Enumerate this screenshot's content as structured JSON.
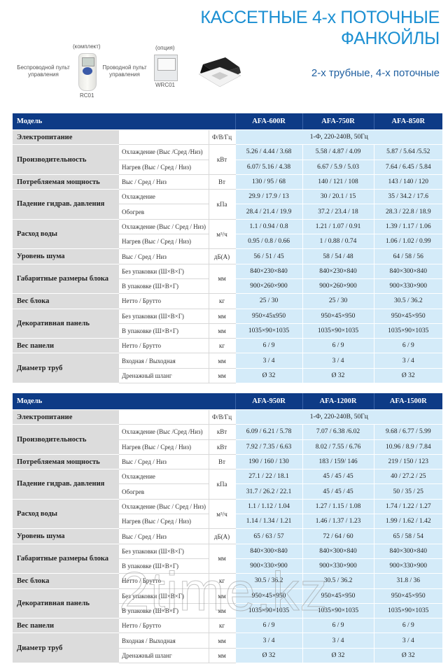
{
  "header": {
    "title_line1": "КАССЕТНЫЕ 4-х ПОТОЧНЫЕ",
    "title_line2": "ФАНКОЙЛЫ",
    "subtitle": "2-х трубные, 4-х поточные",
    "remote_wireless": {
      "note": "(комплект)",
      "label": "Беспроводной пульт управления",
      "model": "RC01"
    },
    "remote_wired": {
      "note": "(опция)",
      "label": "Проводной пульт управления",
      "model": "WRC01"
    }
  },
  "colors": {
    "header_bg": "#0e3b86",
    "title": "#1b8fd2",
    "value_bg": "#d4ebf9",
    "param_bg": "#dcdcdc"
  },
  "watermark": "2time.kz",
  "tables": [
    {
      "model_label": "Модель",
      "models": [
        "AFA-600R",
        "AFA-750R",
        "AFA-850R"
      ],
      "rows": [
        {
          "param": "Электропитание",
          "subs": [
            {
              "label": "",
              "unit": "Ф/В/Гц",
              "merged": "1-Ф, 220-240В, 50Гц"
            }
          ]
        },
        {
          "param": "Производительность",
          "unit": "кВт",
          "subs": [
            {
              "label": "Охлаждение (Выс /Сред /Низ)",
              "values": [
                "5.26 / 4.44 / 3.68",
                "5.58 / 4.87 / 4.09",
                "5.87 / 5.64 /5.52"
              ]
            },
            {
              "label": "Нагрев (Выс / Сред / Низ)",
              "values": [
                "6.07/ 5.16 / 4.38",
                "6.67 / 5.9 / 5.03",
                "7.64 / 6.45 / 5.84"
              ]
            }
          ]
        },
        {
          "param": "Потребляемая мощность",
          "subs": [
            {
              "label": "Выс / Сред / Низ",
              "unit": "Вт",
              "values": [
                "130 / 95 / 68",
                "140 / 121 / 108",
                "143 / 140 / 120"
              ]
            }
          ]
        },
        {
          "param": "Падение гидрав. давления",
          "unit": "кПа",
          "subs": [
            {
              "label": "Охлаждение",
              "values": [
                "29.9 / 17.9 / 13",
                "30 / 20.1 / 15",
                "35 / 34.2 / 17.6"
              ]
            },
            {
              "label": "Обогрев",
              "values": [
                "28.4 / 21.4 / 19.9",
                "37.2 / 23.4 / 18",
                "28.3 / 22.8 / 18.9"
              ]
            }
          ]
        },
        {
          "param": "Расход воды",
          "unit": "м³/ч",
          "subs": [
            {
              "label": "Охлаждение (Выс / Сред / Низ)",
              "values": [
                "1.1 / 0.94 / 0.8",
                "1.21 / 1.07 / 0.91",
                "1.39 / 1.17 / 1.06"
              ]
            },
            {
              "label": "Нагрев (Выс / Сред / Низ)",
              "values": [
                "0.95 / 0.8 / 0.66",
                "1 / 0.88 / 0.74",
                "1.06 / 1.02 / 0.99"
              ]
            }
          ]
        },
        {
          "param": "Уровень шума",
          "subs": [
            {
              "label": "Выс / Сред / Низ",
              "unit": "дБ(А)",
              "values": [
                "56 / 51 / 45",
                "58 / 54 / 48",
                "64 / 58 / 56"
              ]
            }
          ]
        },
        {
          "param": "Габаритные размеры блока",
          "unit": "мм",
          "subs": [
            {
              "label": "Без упаковки (Ш×В×Г)",
              "values": [
                "840×230×840",
                "840×230×840",
                "840×300×840"
              ]
            },
            {
              "label": "В упаковке (Ш×В×Г)",
              "values": [
                "900×260×900",
                "900×260×900",
                "900×330×900"
              ]
            }
          ]
        },
        {
          "param": "Вес блока",
          "subs": [
            {
              "label": "Нетто / Брутто",
              "unit": "кг",
              "values": [
                "25 / 30",
                "25 / 30",
                "30.5 / 36.2"
              ]
            }
          ]
        },
        {
          "param": "Декоративная панель",
          "subs": [
            {
              "label": "Без упаковки (Ш×В×Г)",
              "unit": "мм",
              "values": [
                "950×45x950",
                "950×45×950",
                "950×45×950"
              ]
            },
            {
              "label": "В упаковке (Ш×В×Г)",
              "unit": "мм",
              "values": [
                "1035×90×1035",
                "1035×90×1035",
                "1035×90×1035"
              ]
            }
          ]
        },
        {
          "param": "Вес панели",
          "subs": [
            {
              "label": "Нетто / Брутто",
              "unit": "кг",
              "values": [
                "6 / 9",
                "6 / 9",
                "6 / 9"
              ]
            }
          ]
        },
        {
          "param": "Диаметр труб",
          "subs": [
            {
              "label": "Входная / Выходная",
              "unit": "мм",
              "values": [
                "3 / 4",
                "3 / 4",
                "3  / 4"
              ]
            },
            {
              "label": "Дренажный шланг",
              "unit": "мм",
              "values": [
                "Ø 32",
                "Ø 32",
                "Ø 32"
              ]
            }
          ]
        }
      ]
    },
    {
      "model_label": "Модель",
      "models": [
        "AFA-950R",
        "AFA-1200R",
        "AFA-1500R"
      ],
      "rows": [
        {
          "param": "Электропитание",
          "subs": [
            {
              "label": "",
              "unit": "Ф/В/Гц",
              "merged": "1-Ф, 220-240В, 50Гц"
            }
          ]
        },
        {
          "param": "Производительность",
          "subs": [
            {
              "label": "Охлаждение (Выс /Сред /Низ)",
              "unit": "кВт",
              "values": [
                "6.09 / 6.21 / 5.78",
                "7.07 / 6.38 /6.02",
                "9.68 / 6.77 / 5.99"
              ]
            },
            {
              "label": "Нагрев (Выс / Сред / Низ)",
              "unit": "кВт",
              "values": [
                "7.92 / 7.35 / 6.63",
                "8.02 / 7.55 / 6.76",
                "10.96 / 8.9 / 7.84"
              ]
            }
          ]
        },
        {
          "param": "Потребляемая мощность",
          "subs": [
            {
              "label": "Выс / Сред / Низ",
              "unit": "Вт",
              "values": [
                "190 / 160 / 130",
                "183 / 159/ 146",
                "219 / 150 / 123"
              ]
            }
          ]
        },
        {
          "param": "Падение гидрав. давления",
          "unit": "кПа",
          "subs": [
            {
              "label": "Охлаждение",
              "values": [
                "27.1 / 22 / 18.1",
                "45 / 45 / 45",
                "40 / 27.2 / 25"
              ]
            },
            {
              "label": "Обогрев",
              "values": [
                "31.7 / 26.2 / 22.1",
                "45 / 45 / 45",
                "50 / 35 / 25"
              ]
            }
          ]
        },
        {
          "param": "Расход воды",
          "unit": "м³/ч",
          "subs": [
            {
              "label": "Охлаждение (Выс / Сред / Низ)",
              "values": [
                "1.1 / 1.12 / 1.04",
                "1.27 / 1.15 / 1.08",
                "1.74 / 1.22 / 1.27"
              ]
            },
            {
              "label": "Нагрев (Выс / Сред / Низ)",
              "values": [
                "1.14 / 1.34 / 1.21",
                "1.46 / 1.37 / 1.23",
                "1.99 / 1.62 / 1.42"
              ]
            }
          ]
        },
        {
          "param": "Уровень шума",
          "subs": [
            {
              "label": "Выс / Сред / Низ",
              "unit": "дБ(А)",
              "values": [
                "65 / 63 / 57",
                "72 / 64 / 60",
                "65 / 58 / 54"
              ]
            }
          ]
        },
        {
          "param": "Габаритные размеры блока",
          "unit": "мм",
          "subs": [
            {
              "label": "Без упаковки (Ш×В×Г)",
              "values": [
                "840×300×840",
                "840×300×840",
                "840×300×840"
              ]
            },
            {
              "label": "В упаковке (Ш×В×Г)",
              "values": [
                "900×330×900",
                "900×330×900",
                "900×330×900"
              ]
            }
          ]
        },
        {
          "param": "Вес блока",
          "subs": [
            {
              "label": "Нетто / Брутто",
              "unit": "кг",
              "values": [
                "30.5 / 36.2",
                "30.5 / 36.2",
                "31.8 / 36"
              ]
            }
          ]
        },
        {
          "param": "Декоративная панель",
          "subs": [
            {
              "label": "Без упаковки (Ш×В×Г)",
              "unit": "мм",
              "values": [
                "950×45×950",
                "950×45×950",
                "950×45×950"
              ]
            },
            {
              "label": "В упаковке (Ш×В×Г)",
              "unit": "мм",
              "values": [
                "1035×90×1035",
                "1035×90×1035",
                "1035×90×1035"
              ]
            }
          ]
        },
        {
          "param": "Вес панели",
          "subs": [
            {
              "label": "Нетто / Брутто",
              "unit": "кг",
              "values": [
                "6 / 9",
                "6 / 9",
                "6 / 9"
              ]
            }
          ]
        },
        {
          "param": "Диаметр труб",
          "subs": [
            {
              "label": "Входная / Выходная",
              "unit": "мм",
              "values": [
                "3 / 4",
                "3 / 4",
                "3 / 4"
              ]
            },
            {
              "label": "Дренажный шланг",
              "unit": "мм",
              "values": [
                "Ø 32",
                "Ø 32",
                "Ø 32"
              ]
            }
          ]
        }
      ]
    }
  ]
}
